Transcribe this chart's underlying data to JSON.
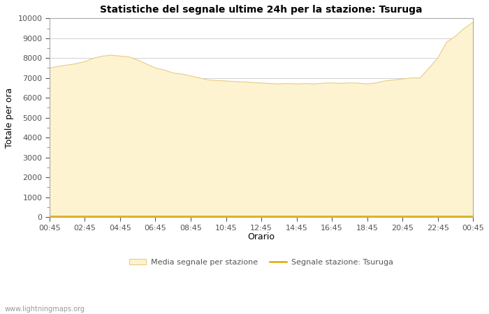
{
  "title": "Statistiche del segnale ultime 24h per la stazione: Tsuruga",
  "xlabel": "Orario",
  "ylabel": "Totale per ora",
  "xlabels": [
    "00:45",
    "02:45",
    "04:45",
    "06:45",
    "08:45",
    "10:45",
    "12:45",
    "14:45",
    "16:45",
    "18:45",
    "20:45",
    "22:45",
    "00:45"
  ],
  "ylim": [
    0,
    10000
  ],
  "yticks": [
    0,
    1000,
    2000,
    3000,
    4000,
    5000,
    6000,
    7000,
    8000,
    9000,
    10000
  ],
  "fill_color": "#fdf3d0",
  "fill_edge_color": "#e8cc88",
  "line_color": "#e0a800",
  "bg_color": "#ffffff",
  "grid_color": "#cccccc",
  "watermark": "www.lightningmaps.org",
  "legend_fill_label": "Media segnale per stazione",
  "legend_line_label": "Segnale stazione: Tsuruga",
  "x_values": [
    0,
    0.5,
    1,
    1.5,
    2,
    2.5,
    3,
    3.5,
    4,
    4.5,
    5,
    5.5,
    6,
    6.5,
    7,
    7.5,
    8,
    8.5,
    9,
    9.5,
    10,
    10.5,
    11,
    11.5,
    12,
    12.5,
    13,
    13.5,
    14,
    14.5,
    15,
    15.5,
    16,
    16.5,
    17,
    17.5,
    18,
    18.5,
    19,
    19.5,
    20,
    20.5,
    21,
    21.5,
    22,
    22.5,
    23,
    23.5,
    24
  ],
  "fill_values": [
    7500,
    7580,
    7650,
    7720,
    7820,
    8000,
    8100,
    8150,
    8100,
    8060,
    7900,
    7700,
    7500,
    7400,
    7250,
    7200,
    7100,
    7000,
    6900,
    6870,
    6850,
    6820,
    6800,
    6770,
    6750,
    6720,
    6700,
    6720,
    6700,
    6720,
    6700,
    6740,
    6750,
    6730,
    6750,
    6740,
    6700,
    6750,
    6850,
    6900,
    6950,
    7000,
    7000,
    7500,
    8000,
    8800,
    9100,
    9500,
    9800
  ],
  "line_values": [
    50,
    50,
    50,
    50,
    50,
    50,
    50,
    50,
    50,
    50,
    50,
    50,
    50,
    50,
    50,
    50,
    50,
    50,
    50,
    50,
    50,
    50,
    50,
    50,
    50,
    50,
    50,
    50,
    50,
    50,
    50,
    50,
    50,
    50,
    50,
    50,
    50,
    50,
    50,
    50,
    50,
    50,
    50,
    50,
    50,
    50,
    50,
    50,
    50
  ]
}
